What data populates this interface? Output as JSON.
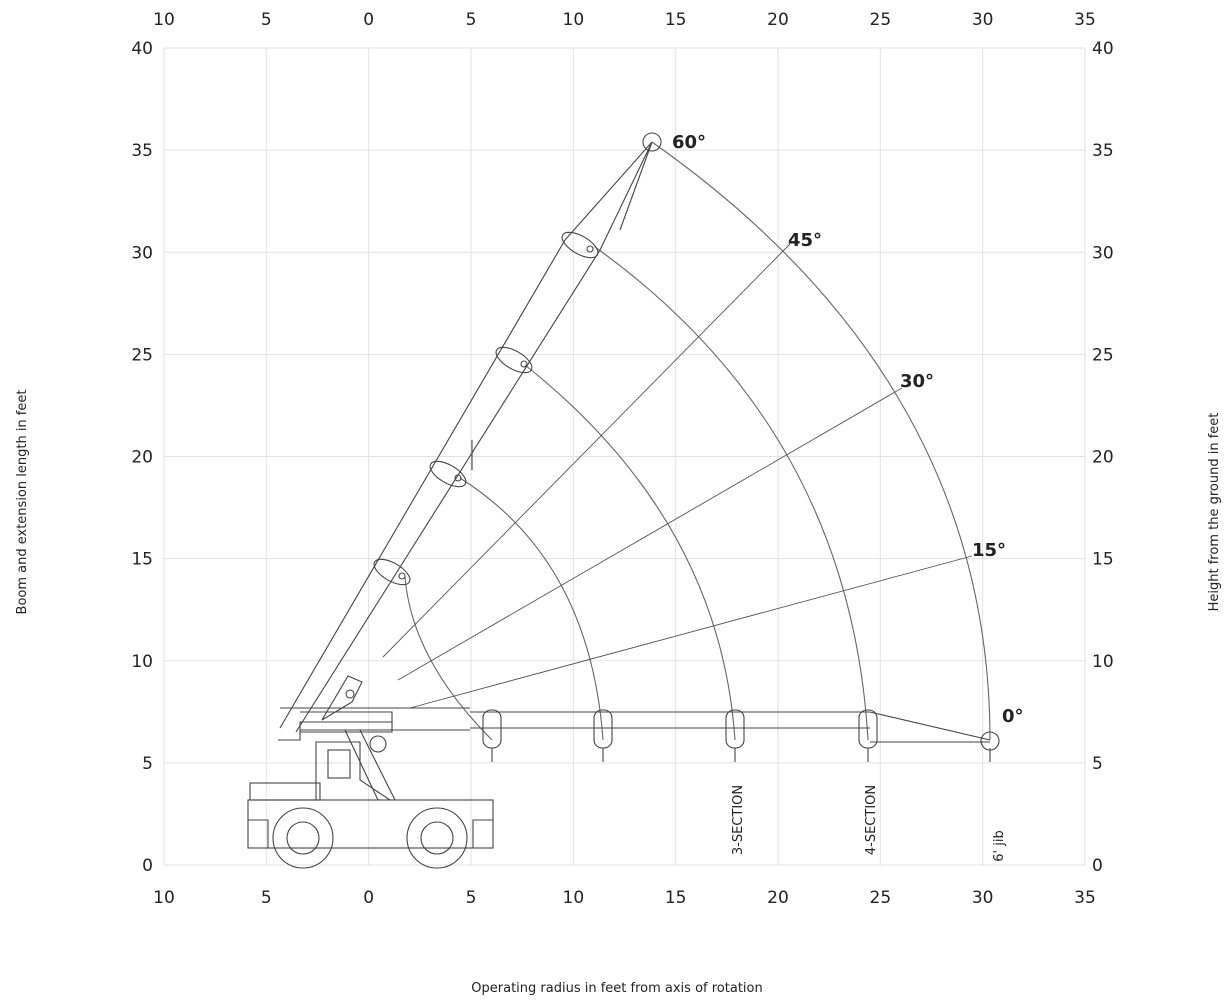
{
  "chart_data": {
    "type": "diagram",
    "x_ticks_bottom": [
      "10",
      "5",
      "0",
      "5",
      "10",
      "15",
      "20",
      "25",
      "30",
      "35"
    ],
    "x_ticks_top": [
      "10",
      "5",
      "0",
      "5",
      "10",
      "15",
      "20",
      "25",
      "30",
      "35"
    ],
    "y_ticks_left": [
      "0",
      "5",
      "10",
      "15",
      "20",
      "25",
      "30",
      "35",
      "40"
    ],
    "y_ticks_right": [
      "0",
      "5",
      "10",
      "15",
      "20",
      "25",
      "30",
      "35",
      "40"
    ],
    "xlim": [
      -10,
      35
    ],
    "ylim": [
      0,
      40
    ],
    "grid": true,
    "angle_labels": [
      "0°",
      "15°",
      "30°",
      "45°",
      "60°"
    ],
    "section_labels": [
      "3-SECTION",
      "4-SECTION",
      "6' jib"
    ],
    "xlabel": "Operating radius in feet from axis of rotation",
    "ylabel_left": "Boom and extension length in feet",
    "ylabel_right": "Height from the ground in feet"
  }
}
